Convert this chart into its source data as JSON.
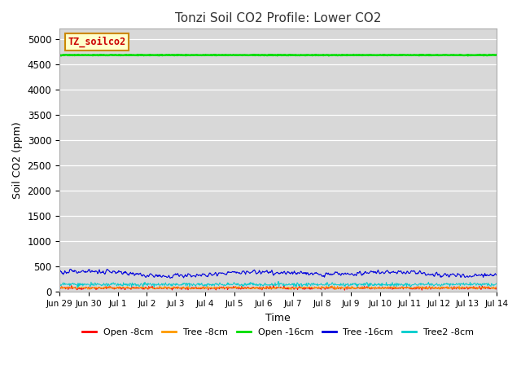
{
  "title": "Tonzi Soil CO2 Profile: Lower CO2",
  "xlabel": "Time",
  "ylabel": "Soil CO2 (ppm)",
  "ylim": [
    0,
    5200
  ],
  "yticks": [
    0,
    500,
    1000,
    1500,
    2000,
    2500,
    3000,
    3500,
    4000,
    4500,
    5000
  ],
  "background_color": "#d8d8d8",
  "legend_label": "TZ_soilco2",
  "legend_box_facecolor": "#ffffcc",
  "legend_box_edgecolor": "#cc8800",
  "legend_text_color": "#cc0000",
  "series": {
    "open_8cm": {
      "color": "#ff0000",
      "label": "Open -8cm",
      "mean": 75,
      "std": 15
    },
    "tree_8cm": {
      "color": "#ff9900",
      "label": "Tree -8cm",
      "mean": 80,
      "std": 12
    },
    "open_16cm": {
      "color": "#00dd00",
      "label": "Open -16cm",
      "mean": 4680,
      "std": 3
    },
    "tree_16cm": {
      "color": "#0000dd",
      "label": "Tree -16cm",
      "mean": 360,
      "std": 35
    },
    "tree2_8cm": {
      "color": "#00cccc",
      "label": "Tree2 -8cm",
      "mean": 145,
      "std": 18
    }
  },
  "n_points": 800,
  "x_start": 0,
  "x_end": 15,
  "xtick_positions": [
    0,
    1,
    2,
    3,
    4,
    5,
    6,
    7,
    8,
    9,
    10,
    11,
    12,
    13,
    14,
    15
  ],
  "xtick_labels": [
    "Jun 29",
    "Jun 30",
    "Jul 1",
    "Jul 2",
    "Jul 3",
    "Jul 4",
    "Jul 5",
    "Jul 6",
    "Jul 7",
    "Jul 8",
    "Jul 9",
    "Jul 10",
    "Jul 11",
    "Jul 12",
    "Jul 13",
    "Jul 14"
  ]
}
